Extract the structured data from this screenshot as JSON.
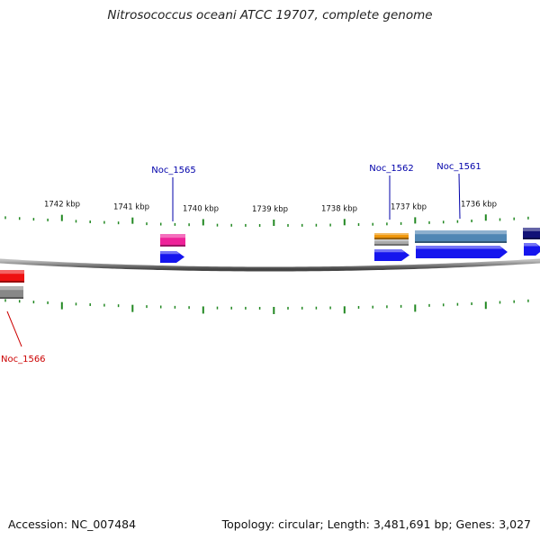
{
  "title": "Nitrosococcus oceani ATCC 19707, complete genome",
  "footer": {
    "accession": "Accession: NC_007484",
    "summary": "Topology: circular; Length: 3,481,691 bp; Genes: 3,027"
  },
  "scale": {
    "labels": [
      "1742 kbp",
      "1741 kbp",
      "1740 kbp",
      "1739 kbp",
      "1738 kbp",
      "1737 kbp",
      "1736 kbp"
    ]
  },
  "genes": [
    {
      "id": "Noc_1566",
      "color": "#ee1111",
      "label_color": "#cc0000"
    },
    {
      "id": "Noc_1565",
      "color": "#ee2299",
      "label_color": "#0000aa"
    },
    {
      "id": "Noc_1562",
      "color": "#f0960a",
      "label_color": "#0000aa"
    },
    {
      "id": "Noc_1561",
      "color": "#4f86b4",
      "label_color": "#0000aa"
    }
  ],
  "colors": {
    "cds": "#1515ee",
    "backbone": "#777777",
    "tick": "#228822",
    "gene_gray": "#888888",
    "navy": "#111177"
  }
}
